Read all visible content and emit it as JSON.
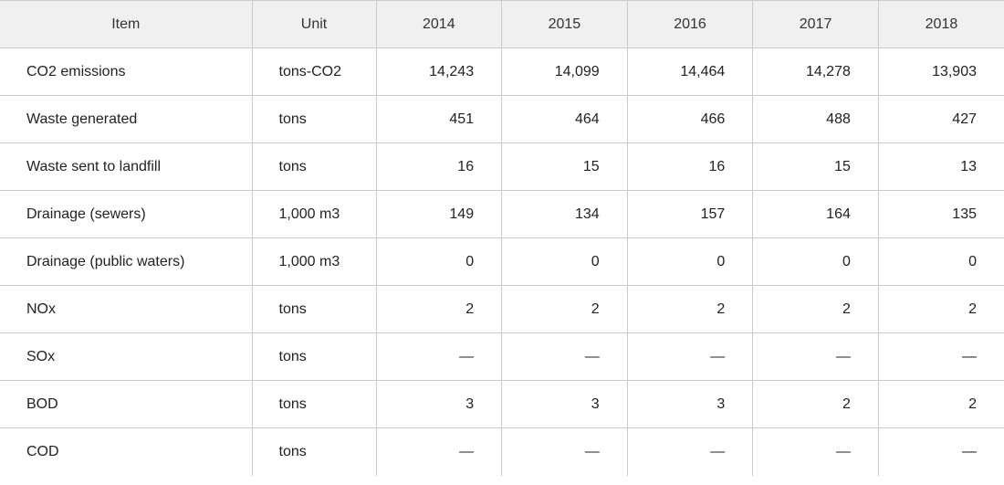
{
  "table": {
    "headers": [
      "Item",
      "Unit",
      "2014",
      "2015",
      "2016",
      "2017",
      "2018"
    ],
    "rows": [
      {
        "item": "CO2 emissions",
        "unit": "tons-CO2",
        "values": [
          "14,243",
          "14,099",
          "14,464",
          "14,278",
          "13,903"
        ]
      },
      {
        "item": "Waste generated",
        "unit": "tons",
        "values": [
          "451",
          "464",
          "466",
          "488",
          "427"
        ]
      },
      {
        "item": "Waste sent to landfill",
        "unit": "tons",
        "values": [
          "16",
          "15",
          "16",
          "15",
          "13"
        ]
      },
      {
        "item": "Drainage (sewers)",
        "unit": "1,000 m3",
        "values": [
          "149",
          "134",
          "157",
          "164",
          "135"
        ]
      },
      {
        "item": "Drainage (public waters)",
        "unit": "1,000 m3",
        "values": [
          "0",
          "0",
          "0",
          "0",
          "0"
        ]
      },
      {
        "item": "NOx",
        "unit": "tons",
        "values": [
          "2",
          "2",
          "2",
          "2",
          "2"
        ]
      },
      {
        "item": "SOx",
        "unit": "tons",
        "values": [
          "—",
          "—",
          "—",
          "—",
          "—"
        ]
      },
      {
        "item": "BOD",
        "unit": "tons",
        "values": [
          "3",
          "3",
          "3",
          "2",
          "2"
        ]
      },
      {
        "item": "COD",
        "unit": "tons",
        "values": [
          "—",
          "—",
          "—",
          "—",
          "—"
        ]
      }
    ]
  }
}
